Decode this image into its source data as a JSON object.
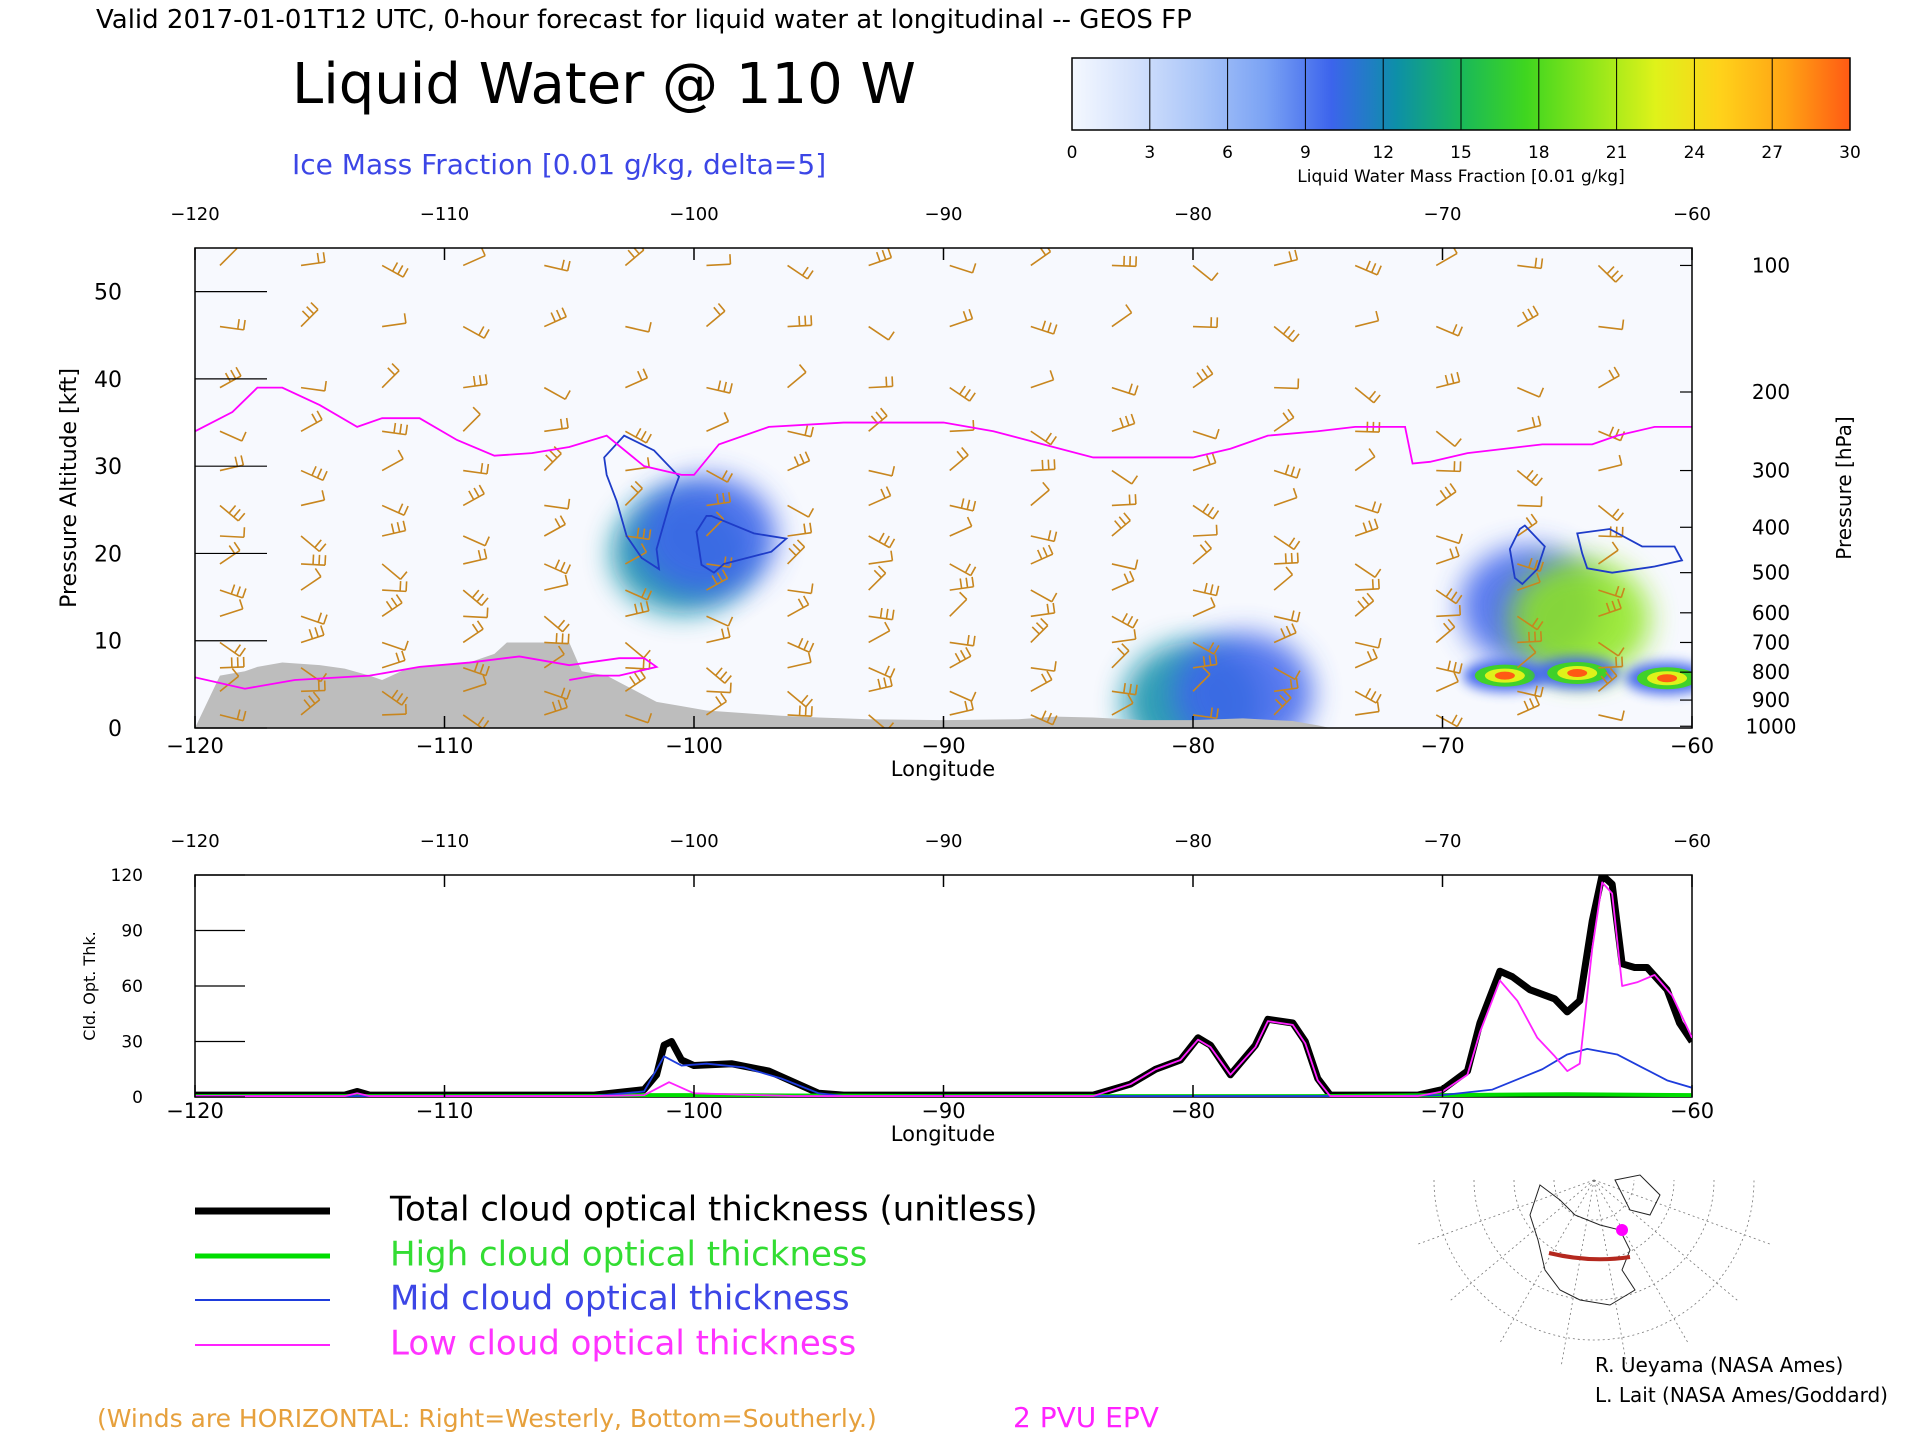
{
  "header": {
    "valid_line": "Valid 2017-01-01T12 UTC, 0-hour forecast for liquid water at longitudinal -- GEOS FP",
    "title": "Liquid Water @ 110 W",
    "subtitle": "Ice Mass Fraction [0.01 g/kg, delta=5]"
  },
  "colorbar": {
    "label": "Liquid Water Mass Fraction [0.01 g/kg]",
    "ticks": [
      "0",
      "3",
      "6",
      "9",
      "12",
      "15",
      "18",
      "21",
      "24",
      "27",
      "30"
    ],
    "colors": [
      "#f4f8ff",
      "#d2e0fc",
      "#a8c4f8",
      "#7aa2f4",
      "#3c64ec",
      "#0d8fa8",
      "#19b85a",
      "#3fd61f",
      "#8ee61a",
      "#dff21a",
      "#ffd21a",
      "#ffa414",
      "#ff5a14"
    ]
  },
  "colors": {
    "wind": "#c8861e",
    "epv": "#ff00ff",
    "terrain": "#bdbdbd",
    "ice_contour": "#1e3cc8",
    "total": "#000000",
    "high": "#00dd00",
    "mid": "#1e3cdc",
    "low": "#ff22ff"
  },
  "chart_data": [
    {
      "type": "heatmap",
      "name_printed": "Liquid Water @ 110 W",
      "xlabel": "Longitude",
      "ylabel": "Pressure Altitude [kft]",
      "ylabel_right": "Pressure [hPa]",
      "xlim": [
        -120,
        -60
      ],
      "ylim": [
        0,
        55
      ],
      "x_ticks": [
        "−120",
        "−110",
        "−100",
        "−90",
        "−80",
        "−70",
        "−60"
      ],
      "x_tick_values": [
        -120,
        -110,
        -100,
        -90,
        -80,
        -70,
        -60
      ],
      "y_ticks": [
        "0",
        "10",
        "20",
        "30",
        "40",
        "50"
      ],
      "y_tick_values": [
        0,
        10,
        20,
        30,
        40,
        50
      ],
      "pressure_ticks": [
        "100",
        "200",
        "300",
        "400",
        "500",
        "600",
        "700",
        "800",
        "900",
        "1000"
      ],
      "pressure_tick_kft": [
        53,
        38.5,
        29.5,
        23,
        17.8,
        13.2,
        9.8,
        6.4,
        3.2,
        0.2
      ],
      "epv_2pvu_line": [
        [
          -120,
          34
        ],
        [
          -118.5,
          36.2
        ],
        [
          -117.5,
          39
        ],
        [
          -116.5,
          39
        ],
        [
          -115,
          37
        ],
        [
          -113.5,
          34.5
        ],
        [
          -112.5,
          35.5
        ],
        [
          -111,
          35.5
        ],
        [
          -109.5,
          33
        ],
        [
          -108,
          31.2
        ],
        [
          -106.5,
          31.5
        ],
        [
          -105,
          32.2
        ],
        [
          -103.5,
          33.5
        ],
        [
          -102,
          30
        ],
        [
          -100.5,
          29
        ],
        [
          -100,
          29
        ],
        [
          -99,
          32.5
        ],
        [
          -97,
          34.5
        ],
        [
          -94,
          35
        ],
        [
          -90,
          35
        ],
        [
          -88,
          34
        ],
        [
          -86,
          32.5
        ],
        [
          -84,
          31
        ],
        [
          -80,
          31
        ],
        [
          -78.5,
          32
        ],
        [
          -77,
          33.5
        ],
        [
          -75,
          34
        ],
        [
          -73.5,
          34.5
        ],
        [
          -72.5,
          34.5
        ],
        [
          -71.5,
          34.5
        ],
        [
          -71.2,
          30.3
        ],
        [
          -70.5,
          30.5
        ],
        [
          -69,
          31.5
        ],
        [
          -67.5,
          32
        ],
        [
          -66,
          32.5
        ],
        [
          -64,
          32.5
        ],
        [
          -63,
          33.5
        ],
        [
          -61.5,
          34.5
        ],
        [
          -60,
          34.5
        ]
      ],
      "epv_low_line": [
        [
          -120,
          5.8
        ],
        [
          -118,
          4.5
        ],
        [
          -116,
          5.5
        ],
        [
          -113,
          6
        ],
        [
          -111,
          7
        ],
        [
          -109,
          7.5
        ],
        [
          -107,
          8.2
        ],
        [
          -105,
          7.2
        ],
        [
          -103,
          8
        ],
        [
          -102,
          8
        ],
        [
          -101.5,
          7
        ],
        [
          -103,
          6
        ],
        [
          -104,
          6
        ],
        [
          -105,
          5.5
        ]
      ],
      "terrain_kft": [
        [
          -120,
          0
        ],
        [
          -119,
          6
        ],
        [
          -118,
          6.5
        ],
        [
          -117.5,
          7
        ],
        [
          -116.5,
          7.5
        ],
        [
          -115,
          7.2
        ],
        [
          -114,
          6.8
        ],
        [
          -113,
          6
        ],
        [
          -112.5,
          5.5
        ],
        [
          -111.5,
          6.8
        ],
        [
          -110,
          7.2
        ],
        [
          -109,
          7.5
        ],
        [
          -108.5,
          8
        ],
        [
          -108,
          8.5
        ],
        [
          -107.5,
          9.8
        ],
        [
          -107,
          9.8
        ],
        [
          -106,
          9.8
        ],
        [
          -105,
          9.8
        ],
        [
          -104.5,
          6.5
        ],
        [
          -103.5,
          6
        ],
        [
          -102.5,
          4.5
        ],
        [
          -101.5,
          3
        ],
        [
          -100.5,
          2.5
        ],
        [
          -99.5,
          2
        ],
        [
          -98,
          1.7
        ],
        [
          -96.5,
          1.4
        ],
        [
          -95,
          1.2
        ],
        [
          -93,
          1
        ],
        [
          -90,
          0.9
        ],
        [
          -87,
          1
        ],
        [
          -85.5,
          1.3
        ],
        [
          -84,
          1.2
        ],
        [
          -82,
          0.9
        ],
        [
          -80,
          0.9
        ],
        [
          -78,
          1.1
        ],
        [
          -76,
          0.8
        ],
        [
          -75,
          0.3
        ],
        [
          -74.5,
          0
        ]
      ],
      "ice_contours": [
        [
          [
            -103.6,
            31
          ],
          [
            -102.8,
            33.5
          ],
          [
            -101.6,
            31.8
          ],
          [
            -100.6,
            28.8
          ],
          [
            -100.9,
            26.5
          ],
          [
            -101.5,
            20.5
          ],
          [
            -101.4,
            18.2
          ],
          [
            -102.1,
            19.5
          ],
          [
            -102.7,
            22
          ],
          [
            -103.1,
            26
          ],
          [
            -103.5,
            29
          ],
          [
            -103.6,
            31
          ]
        ],
        [
          [
            -99.3,
            24.3
          ],
          [
            -97.6,
            22.3
          ],
          [
            -96.3,
            21.7
          ],
          [
            -96.9,
            20.2
          ],
          [
            -98.8,
            18.8
          ],
          [
            -99.2,
            17.8
          ],
          [
            -99.7,
            18.7
          ],
          [
            -99.9,
            22.5
          ],
          [
            -99.5,
            24.3
          ],
          [
            -99.3,
            24.3
          ]
        ],
        [
          [
            -66.7,
            23.2
          ],
          [
            -65.9,
            20.8
          ],
          [
            -66.2,
            18.2
          ],
          [
            -66.8,
            16.5
          ],
          [
            -67.1,
            17.2
          ],
          [
            -67.3,
            20.5
          ],
          [
            -66.9,
            22.8
          ],
          [
            -66.7,
            23.2
          ]
        ],
        [
          [
            -64.6,
            22.3
          ],
          [
            -63.3,
            22.8
          ],
          [
            -62,
            20.8
          ],
          [
            -60.7,
            20.8
          ],
          [
            -60.4,
            19.2
          ],
          [
            -61.5,
            18.5
          ],
          [
            -63.2,
            17.8
          ],
          [
            -64.2,
            18.3
          ],
          [
            -64.4,
            20
          ],
          [
            -64.6,
            22.3
          ]
        ]
      ],
      "liquid_water_blobs": [
        {
          "lon": -100.5,
          "kft": 20,
          "value": 6
        },
        {
          "lon": -99.5,
          "kft": 22,
          "value": 4
        },
        {
          "lon": -66.5,
          "kft": 14,
          "value": 4
        },
        {
          "lon": -64.5,
          "kft": 12.5,
          "value": 9
        },
        {
          "lon": -67.5,
          "kft": 6,
          "value": 28
        },
        {
          "lon": -64.6,
          "kft": 6.3,
          "value": 27
        },
        {
          "lon": -61,
          "kft": 5.7,
          "value": 27
        },
        {
          "lon": -80,
          "kft": 3,
          "value": 6
        },
        {
          "lon": -78,
          "kft": 4,
          "value": 4
        }
      ]
    },
    {
      "type": "line",
      "xlabel": "Longitude",
      "ylabel": "Cld. Opt. Thk.",
      "xlim": [
        -120,
        -60
      ],
      "ylim": [
        0,
        120
      ],
      "x_ticks": [
        "−120",
        "−110",
        "−100",
        "−90",
        "−80",
        "−70",
        "−60"
      ],
      "x_tick_values": [
        -120,
        -110,
        -100,
        -90,
        -80,
        -70,
        -60
      ],
      "y_ticks": [
        "0",
        "30",
        "60",
        "90",
        "120"
      ],
      "y_tick_values": [
        0,
        30,
        60,
        90,
        120
      ],
      "series": [
        {
          "name": "Total cloud optical thickness (unitless)",
          "key": "total",
          "points": [
            [
              -120,
              1
            ],
            [
              -114,
              1
            ],
            [
              -113.5,
              3
            ],
            [
              -113,
              1
            ],
            [
              -104,
              1
            ],
            [
              -102,
              4
            ],
            [
              -101.5,
              12
            ],
            [
              -101.2,
              28
            ],
            [
              -100.9,
              30
            ],
            [
              -100.5,
              20
            ],
            [
              -100,
              17
            ],
            [
              -98.5,
              18
            ],
            [
              -97,
              14
            ],
            [
              -96,
              8
            ],
            [
              -95,
              2
            ],
            [
              -94,
              1
            ],
            [
              -84,
              1
            ],
            [
              -82.5,
              7
            ],
            [
              -81.5,
              15
            ],
            [
              -80.5,
              20
            ],
            [
              -79.8,
              32
            ],
            [
              -79.3,
              28
            ],
            [
              -78.5,
              12
            ],
            [
              -77.5,
              28
            ],
            [
              -77,
              42
            ],
            [
              -76,
              40
            ],
            [
              -75.5,
              30
            ],
            [
              -75,
              10
            ],
            [
              -74.5,
              1
            ],
            [
              -71,
              1
            ],
            [
              -70,
              4
            ],
            [
              -69,
              14
            ],
            [
              -68.5,
              40
            ],
            [
              -67.7,
              68
            ],
            [
              -67.2,
              65
            ],
            [
              -66.5,
              58
            ],
            [
              -65.5,
              53
            ],
            [
              -65,
              46
            ],
            [
              -64.5,
              52
            ],
            [
              -64,
              95
            ],
            [
              -63.6,
              120
            ],
            [
              -63.2,
              115
            ],
            [
              -62.8,
              72
            ],
            [
              -62.3,
              70
            ],
            [
              -61.8,
              70
            ],
            [
              -61,
              58
            ],
            [
              -60.5,
              40
            ],
            [
              -60,
              30
            ]
          ]
        },
        {
          "name": "High cloud optical thickness",
          "key": "high",
          "points": [
            [
              -120,
              0.5
            ],
            [
              -104,
              0.5
            ],
            [
              -102,
              1
            ],
            [
              -100,
              1
            ],
            [
              -90,
              0.5
            ],
            [
              -75,
              0.5
            ],
            [
              -70,
              1
            ],
            [
              -65,
              1.5
            ],
            [
              -60,
              1
            ]
          ]
        },
        {
          "name": "Mid cloud optical thickness",
          "key": "mid",
          "points": [
            [
              -120,
              0.5
            ],
            [
              -104,
              0.5
            ],
            [
              -102,
              3
            ],
            [
              -101.2,
              22
            ],
            [
              -100.5,
              17
            ],
            [
              -99.5,
              18
            ],
            [
              -98,
              16
            ],
            [
              -96.5,
              10
            ],
            [
              -95,
              2
            ],
            [
              -94,
              0.5
            ],
            [
              -72,
              0.5
            ],
            [
              -70,
              1
            ],
            [
              -68,
              4
            ],
            [
              -66,
              15
            ],
            [
              -65,
              23
            ],
            [
              -64.2,
              26
            ],
            [
              -63,
              23
            ],
            [
              -62,
              16
            ],
            [
              -61,
              9
            ],
            [
              -60,
              5
            ]
          ]
        },
        {
          "name": "Low cloud optical thickness",
          "key": "low",
          "points": [
            [
              -120,
              0.5
            ],
            [
              -114,
              0.5
            ],
            [
              -113.5,
              2
            ],
            [
              -113,
              0.5
            ],
            [
              -104,
              0.5
            ],
            [
              -102,
              1
            ],
            [
              -101,
              8
            ],
            [
              -100,
              2
            ],
            [
              -96,
              0.5
            ],
            [
              -84,
              0.5
            ],
            [
              -82.5,
              7
            ],
            [
              -81.5,
              15
            ],
            [
              -80.5,
              20
            ],
            [
              -79.8,
              31
            ],
            [
              -79.3,
              27
            ],
            [
              -78.5,
              12
            ],
            [
              -77.5,
              27
            ],
            [
              -77,
              41
            ],
            [
              -76,
              39
            ],
            [
              -75.5,
              29
            ],
            [
              -75,
              9
            ],
            [
              -74.5,
              0.5
            ],
            [
              -71,
              0.5
            ],
            [
              -70,
              3
            ],
            [
              -69,
              12
            ],
            [
              -68.5,
              35
            ],
            [
              -67.7,
              63
            ],
            [
              -67,
              52
            ],
            [
              -66.2,
              32
            ],
            [
              -65.5,
              22
            ],
            [
              -65,
              14
            ],
            [
              -64.5,
              18
            ],
            [
              -64,
              80
            ],
            [
              -63.6,
              116
            ],
            [
              -63.2,
              110
            ],
            [
              -62.8,
              60
            ],
            [
              -62.2,
              62
            ],
            [
              -61.5,
              66
            ],
            [
              -60.8,
              55
            ],
            [
              -60,
              32
            ]
          ]
        }
      ]
    }
  ],
  "legend": {
    "entries": [
      {
        "label": "Total cloud optical thickness (unitless)",
        "key": "total"
      },
      {
        "label": "High cloud optical thickness",
        "key": "high"
      },
      {
        "label": "Mid cloud optical thickness",
        "key": "mid"
      },
      {
        "label": "Low cloud optical thickness",
        "key": "low"
      }
    ]
  },
  "footer": {
    "winds_note": "(Winds are HORIZONTAL: Right=Westerly, Bottom=Southerly.)",
    "epv_label": "2 PVU EPV",
    "credit1": "R. Ueyama (NASA Ames)",
    "credit2": "L. Lait (NASA Ames/Goddard)"
  },
  "map_inset": {
    "marker_color": "#ff00ff",
    "track_color": "#b4281e"
  }
}
